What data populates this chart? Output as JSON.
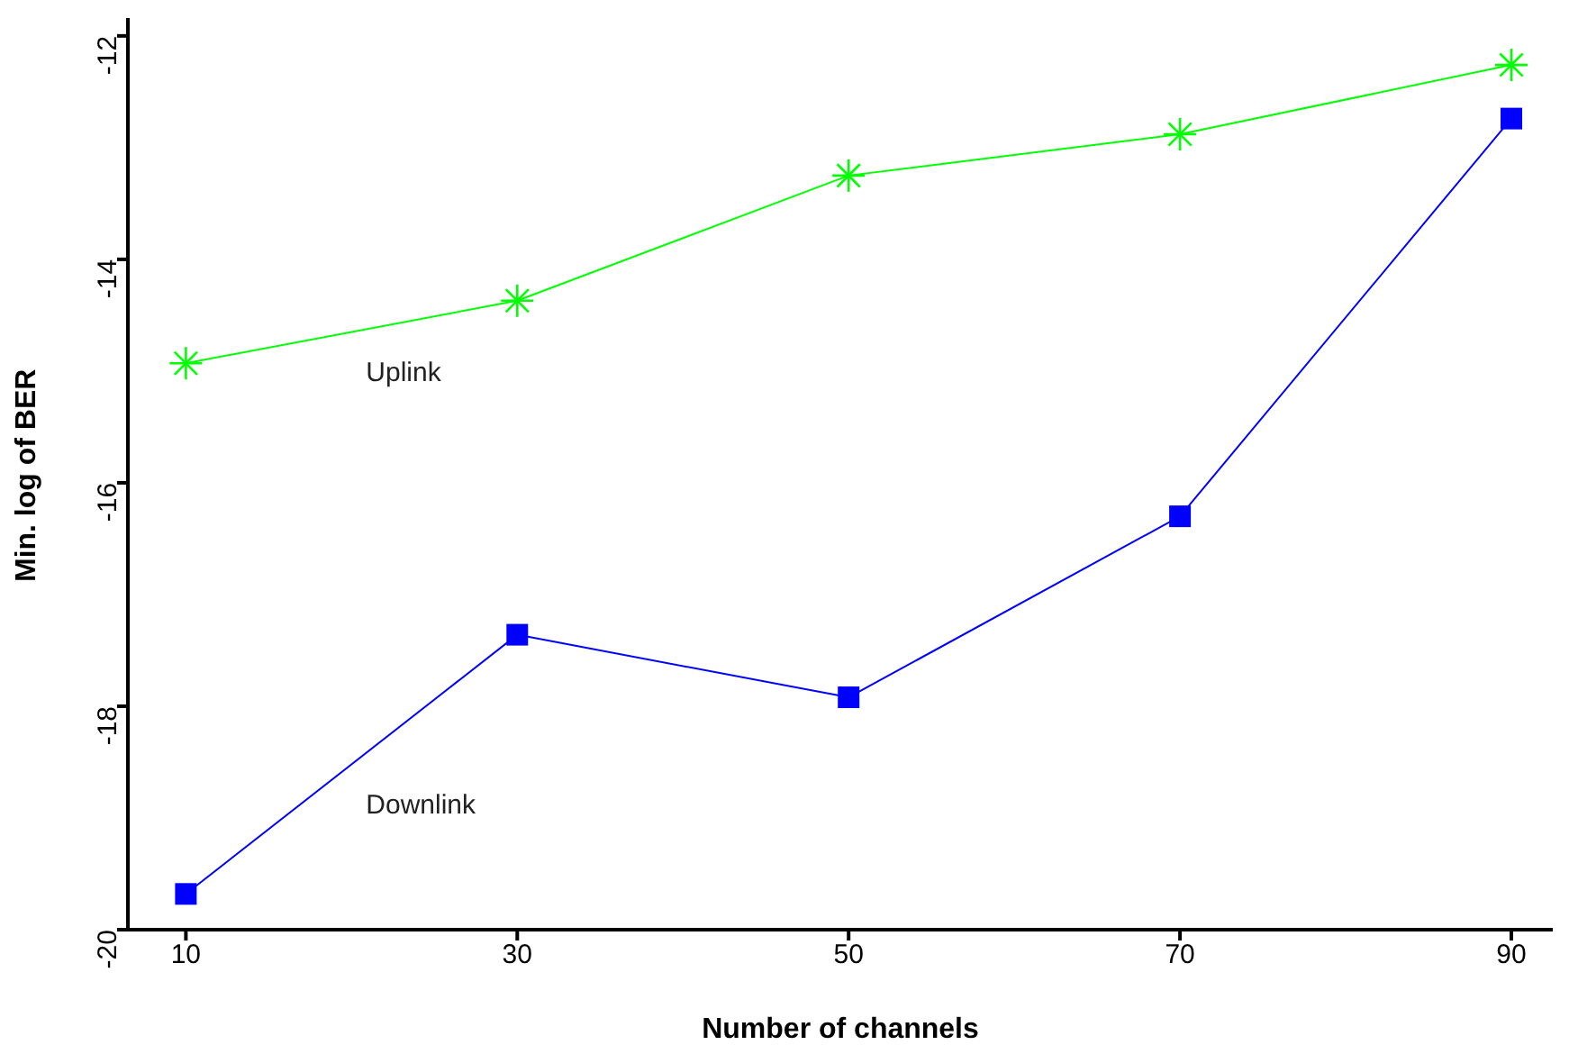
{
  "chart_data": {
    "type": "line",
    "xlabel": "Number of channels",
    "ylabel": "Min. log of BER",
    "xlim": [
      6.5,
      92.5
    ],
    "xticks": [
      10,
      30,
      50,
      70,
      90
    ],
    "ylim": [
      -20,
      -11.84
    ],
    "yticks": [
      -20,
      -18,
      -16,
      -14,
      -12
    ],
    "grid": false,
    "legend": false,
    "series": [
      {
        "name": "Uplink",
        "color": "#00ff00",
        "marker": "cross",
        "x": [
          10,
          30,
          50,
          70,
          90
        ],
        "values": [
          -14.93,
          -14.37,
          -13.25,
          -12.88,
          -12.26
        ]
      },
      {
        "name": "Downlink",
        "color": "#0000ff",
        "marker": "square",
        "x": [
          10,
          30,
          50,
          70,
          90
        ],
        "values": [
          -19.68,
          -17.36,
          -17.92,
          -16.3,
          -12.74
        ]
      }
    ]
  }
}
